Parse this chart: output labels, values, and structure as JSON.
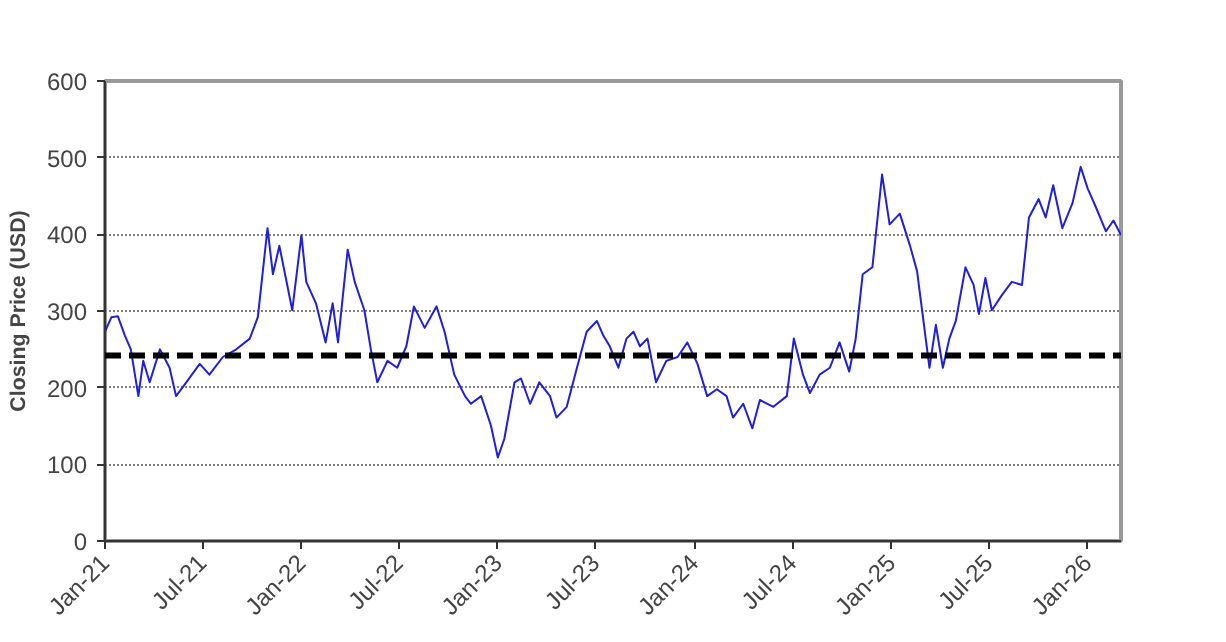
{
  "chart_data": {
    "type": "line",
    "ylabel": "Closing Price (USD)",
    "x": [
      "2021-01-01",
      "2021-01-13",
      "2021-01-25",
      "2021-02-07",
      "2021-02-18",
      "2021-03-04",
      "2021-03-13",
      "2021-03-25",
      "2021-04-13",
      "2021-05-01",
      "2021-05-13",
      "2021-06-01",
      "2021-06-26",
      "2021-07-14",
      "2021-08-08",
      "2021-09-02",
      "2021-09-27",
      "2021-10-12",
      "2021-10-30",
      "2021-11-09",
      "2021-11-21",
      "2021-12-15",
      "2022-01-01",
      "2022-01-10",
      "2022-01-28",
      "2022-02-15",
      "2022-02-28",
      "2022-03-10",
      "2022-03-28",
      "2022-04-10",
      "2022-04-28",
      "2022-05-10",
      "2022-05-22",
      "2022-06-10",
      "2022-06-28",
      "2022-07-15",
      "2022-07-29",
      "2022-08-18",
      "2022-09-09",
      "2022-09-24",
      "2022-10-12",
      "2022-11-01",
      "2022-11-12",
      "2022-12-01",
      "2022-12-19",
      "2023-01-01",
      "2023-01-13",
      "2023-02-01",
      "2023-02-13",
      "2023-03-02",
      "2023-03-19",
      "2023-04-08",
      "2023-04-20",
      "2023-05-09",
      "2023-05-28",
      "2023-06-15",
      "2023-07-04",
      "2023-07-16",
      "2023-07-28",
      "2023-08-13",
      "2023-08-28",
      "2023-09-10",
      "2023-09-22",
      "2023-10-06",
      "2023-10-22",
      "2023-11-10",
      "2023-12-01",
      "2023-12-19",
      "2024-01-07",
      "2024-01-25",
      "2024-02-12",
      "2024-03-01",
      "2024-03-13",
      "2024-04-01",
      "2024-04-18",
      "2024-05-02",
      "2024-05-27",
      "2024-06-21",
      "2024-07-04",
      "2024-07-21",
      "2024-08-03",
      "2024-08-21",
      "2024-09-09",
      "2024-09-27",
      "2024-10-15",
      "2024-10-27",
      "2024-11-09",
      "2024-11-27",
      "2024-12-15",
      "2024-12-29",
      "2025-01-17",
      "2025-02-05",
      "2025-02-18",
      "2025-03-01",
      "2025-03-13",
      "2025-03-25",
      "2025-04-07",
      "2025-04-19",
      "2025-05-01",
      "2025-05-19",
      "2025-06-03",
      "2025-06-13",
      "2025-06-25",
      "2025-07-07",
      "2025-07-25",
      "2025-08-13",
      "2025-09-01",
      "2025-09-14",
      "2025-10-02",
      "2025-10-15",
      "2025-10-29",
      "2025-11-15",
      "2025-12-04",
      "2025-12-19",
      "2026-01-01",
      "2026-01-16",
      "2026-02-04",
      "2026-02-18",
      "2026-03-04"
    ],
    "series": [
      {
        "color": "#1f1fdc",
        "values": [
          273,
          292,
          293,
          268,
          250,
          189,
          235,
          207,
          250,
          226,
          189,
          207,
          231,
          217,
          240,
          250,
          264,
          292,
          408,
          348,
          385,
          301,
          399,
          338,
          310,
          259,
          310,
          259,
          380,
          338,
          301,
          250,
          207,
          235,
          226,
          254,
          306,
          278,
          306,
          273,
          217,
          189,
          179,
          189,
          151,
          109,
          133,
          207,
          212,
          179,
          207,
          189,
          161,
          175,
          226,
          273,
          287,
          268,
          254,
          226,
          264,
          273,
          254,
          264,
          207,
          235,
          240,
          259,
          231,
          189,
          198,
          189,
          161,
          179,
          147,
          184,
          175,
          189,
          264,
          217,
          193,
          217,
          226,
          259,
          221,
          264,
          348,
          357,
          478,
          413,
          427,
          385,
          352,
          292,
          226,
          282,
          226,
          264,
          287,
          357,
          334,
          296,
          343,
          301,
          320,
          338,
          334,
          422,
          446,
          422,
          464,
          408,
          441,
          488,
          460,
          436,
          404,
          418,
          399
        ]
      }
    ],
    "xlim": [
      "2021-01-01",
      "2026-03-04"
    ],
    "xticks": [
      {
        "value": "2021-01-01",
        "label": "Jan-21"
      },
      {
        "value": "2021-07-01",
        "label": "Jul-21"
      },
      {
        "value": "2022-01-01",
        "label": "Jan-22"
      },
      {
        "value": "2022-07-01",
        "label": "Jul-22"
      },
      {
        "value": "2023-01-01",
        "label": "Jan-23"
      },
      {
        "value": "2023-07-01",
        "label": "Jul-23"
      },
      {
        "value": "2024-01-01",
        "label": "Jan-24"
      },
      {
        "value": "2024-07-01",
        "label": "Jul-24"
      },
      {
        "value": "2025-01-01",
        "label": "Jan-25"
      },
      {
        "value": "2025-07-01",
        "label": "Jul-25"
      },
      {
        "value": "2026-01-01",
        "label": "Jan-26"
      }
    ],
    "ylim": [
      0,
      600
    ],
    "yticks": [
      0,
      100,
      200,
      300,
      400,
      500,
      600
    ],
    "ref_lines": [
      {
        "axis": "y",
        "value": 242,
        "color": "#000000",
        "line_style": "dashed"
      }
    ],
    "grid": "y",
    "marker": "none",
    "line_style": "solid"
  }
}
